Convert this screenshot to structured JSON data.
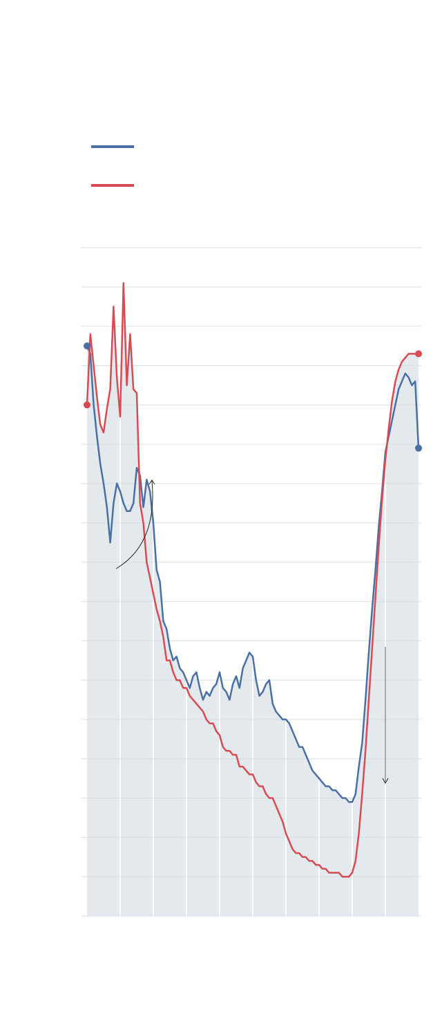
{
  "chart_data": {
    "type": "line",
    "title": "",
    "xlabel": "",
    "ylabel": "",
    "grid": true,
    "legend_placement": "top-left",
    "x_range": [
      0,
      100
    ],
    "ylim": [
      0,
      17
    ],
    "area_fill": true,
    "series": [
      {
        "color": "#4a6fa5",
        "x": [
          0,
          1,
          2,
          3,
          4,
          5,
          6,
          7,
          8,
          9,
          10,
          11,
          12,
          13,
          14,
          15,
          16,
          17,
          18,
          19,
          20,
          21,
          22,
          23,
          24,
          25,
          26,
          27,
          28,
          29,
          30,
          31,
          32,
          33,
          34,
          35,
          36,
          37,
          38,
          39,
          40,
          41,
          42,
          43,
          44,
          45,
          46,
          47,
          48,
          49,
          50,
          51,
          52,
          53,
          54,
          55,
          56,
          57,
          58,
          59,
          60,
          61,
          62,
          63,
          64,
          65,
          66,
          67,
          68,
          69,
          70,
          71,
          72,
          73,
          74,
          75,
          76,
          77,
          78,
          79,
          80,
          81,
          82,
          83,
          84,
          85,
          86,
          87,
          88,
          89,
          90,
          91,
          92,
          93,
          94,
          95,
          96,
          97,
          98,
          99,
          100
        ],
        "values": [
          14.5,
          14.3,
          13,
          12.2,
          11.5,
          11,
          10.4,
          9.5,
          10.5,
          11,
          10.8,
          10.5,
          10.3,
          10.3,
          10.5,
          11.4,
          11.2,
          10.4,
          11.1,
          10.8,
          10,
          8.8,
          8.5,
          7.5,
          7.3,
          6.8,
          6.5,
          6.6,
          6.3,
          6.2,
          6,
          5.8,
          6.1,
          6.2,
          5.8,
          5.5,
          5.7,
          5.6,
          5.8,
          5.9,
          6.2,
          5.8,
          5.7,
          5.5,
          5.9,
          6.1,
          5.8,
          6.3,
          6.5,
          6.7,
          6.6,
          6,
          5.6,
          5.7,
          5.9,
          6,
          5.4,
          5.2,
          5.1,
          5,
          5,
          4.9,
          4.7,
          4.5,
          4.3,
          4.3,
          4.1,
          3.9,
          3.7,
          3.6,
          3.5,
          3.4,
          3.3,
          3.3,
          3.2,
          3.2,
          3.1,
          3,
          3,
          2.9,
          2.9,
          3.1,
          3.8,
          4.4,
          5.5,
          6.7,
          7.8,
          8.8,
          9.9,
          10.8,
          11.8,
          12.2,
          12.6,
          13,
          13.4,
          13.6,
          13.8,
          13.7,
          13.5,
          13.6,
          11.9
        ]
      },
      {
        "color": "#d94b52",
        "x": [
          0,
          1,
          2,
          3,
          4,
          5,
          6,
          7,
          8,
          9,
          10,
          11,
          12,
          13,
          14,
          15,
          16,
          17,
          18,
          19,
          20,
          21,
          22,
          23,
          24,
          25,
          26,
          27,
          28,
          29,
          30,
          31,
          32,
          33,
          34,
          35,
          36,
          37,
          38,
          39,
          40,
          41,
          42,
          43,
          44,
          45,
          46,
          47,
          48,
          49,
          50,
          51,
          52,
          53,
          54,
          55,
          56,
          57,
          58,
          59,
          60,
          61,
          62,
          63,
          64,
          65,
          66,
          67,
          68,
          69,
          70,
          71,
          72,
          73,
          74,
          75,
          76,
          77,
          78,
          79,
          80,
          81,
          82,
          83,
          84,
          85,
          86,
          87,
          88,
          89,
          90,
          91,
          92,
          93,
          94,
          95,
          96,
          97,
          98,
          99,
          100
        ],
        "values": [
          13,
          14.8,
          14,
          13.2,
          12.5,
          12.3,
          12.9,
          13.4,
          15.5,
          13.7,
          12.7,
          16.1,
          13.5,
          14.8,
          13.4,
          13.3,
          10.5,
          10,
          9,
          8.6,
          8.2,
          7.8,
          7.5,
          7.1,
          6.5,
          6.5,
          6.2,
          6,
          6,
          5.8,
          5.8,
          5.6,
          5.5,
          5.4,
          5.3,
          5.2,
          5,
          4.9,
          4.9,
          4.7,
          4.6,
          4.3,
          4.2,
          4.2,
          4.1,
          4.1,
          3.8,
          3.8,
          3.7,
          3.6,
          3.6,
          3.4,
          3.3,
          3.3,
          3.1,
          3,
          3,
          2.8,
          2.6,
          2.4,
          2.1,
          1.9,
          1.7,
          1.6,
          1.6,
          1.5,
          1.5,
          1.4,
          1.4,
          1.3,
          1.3,
          1.2,
          1.2,
          1.1,
          1.1,
          1.1,
          1.1,
          1.0,
          1.0,
          1.0,
          1.1,
          1.4,
          2.1,
          3.1,
          4.2,
          5.5,
          6.8,
          8.1,
          9.4,
          10.6,
          11.6,
          12.4,
          13.1,
          13.6,
          13.9,
          14.1,
          14.2,
          14.3,
          14.3,
          14.3,
          14.3
        ]
      }
    ]
  }
}
